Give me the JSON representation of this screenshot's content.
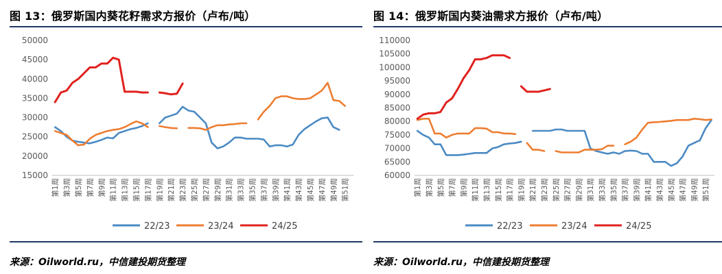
{
  "charts": [
    {
      "title": "图 13：俄罗斯国内葵花籽需求方报价（卢布/吨）",
      "source": "来源：Oilworld.ru，中信建投期货整理",
      "chart_data": {
        "type": "line",
        "title": "俄罗斯国内葵花籽需求方报价（卢布/吨）",
        "xlabel": "",
        "ylabel": "",
        "ylim": [
          15000,
          50000
        ],
        "yticks": [
          15000,
          20000,
          25000,
          30000,
          35000,
          40000,
          45000,
          50000
        ],
        "x": [
          "第1周",
          "第2周",
          "第3周",
          "第4周",
          "第5周",
          "第6周",
          "第7周",
          "第8周",
          "第9周",
          "第10周",
          "第11周",
          "第12周",
          "第13周",
          "第14周",
          "第15周",
          "第16周",
          "第17周",
          "第18周",
          "第19周",
          "第20周",
          "第21周",
          "第22周",
          "第23周",
          "第24周",
          "第25周",
          "第26周",
          "第27周",
          "第28周",
          "第29周",
          "第30周",
          "第31周",
          "第32周",
          "第33周",
          "第34周",
          "第35周",
          "第36周",
          "第37周",
          "第38周",
          "第39周",
          "第40周",
          "第41周",
          "第42周",
          "第43周",
          "第44周",
          "第45周",
          "第46周",
          "第47周",
          "第48周",
          "第49周",
          "第50周",
          "第51周",
          "第52周"
        ],
        "xticks": [
          "第1周",
          "第3周",
          "第5周",
          "第7周",
          "第9周",
          "第11周",
          "第13周",
          "第15周",
          "第17周",
          "第19周",
          "第21周",
          "第23周",
          "第25周",
          "第27周",
          "第29周",
          "第31周",
          "第33周",
          "第35周",
          "第37周",
          "第39周",
          "第41周",
          "第43周",
          "第45周",
          "第47周",
          "第49周",
          "第51周"
        ],
        "series": [
          {
            "name": "22/23",
            "color": "#4a8ac4",
            "values": [
              27500,
              26500,
              25000,
              24000,
              23700,
              23500,
              23300,
              23700,
              24200,
              24800,
              24600,
              26000,
              26500,
              27000,
              27300,
              27800,
              28500,
              null,
              28500,
              30000,
              30500,
              31000,
              32800,
              31800,
              31500,
              30000,
              28500,
              23500,
              22000,
              22500,
              23500,
              24800,
              24800,
              24500,
              24500,
              24500,
              24300,
              22500,
              22800,
              22800,
              22500,
              23000,
              25500,
              27000,
              28000,
              29000,
              29800,
              30000,
              27500,
              26800,
              null,
              null
            ]
          },
          {
            "name": "23/24",
            "color": "#ed7d31",
            "values": [
              26500,
              26000,
              25500,
              24000,
              22800,
              23000,
              24500,
              25500,
              26000,
              26500,
              26800,
              27000,
              27500,
              28300,
              29000,
              28500,
              27500,
              null,
              27800,
              27500,
              27300,
              27200,
              null,
              27300,
              27300,
              27200,
              26800,
              27500,
              28000,
              28000,
              28200,
              28300,
              28500,
              28500,
              null,
              29500,
              31500,
              33000,
              35000,
              35500,
              35500,
              35000,
              34800,
              34800,
              35000,
              36000,
              37000,
              39000,
              34500,
              34300,
              33000,
              null
            ]
          },
          {
            "name": "24/25",
            "color": "#e0211d",
            "values": [
              34000,
              36500,
              37000,
              39000,
              40000,
              41500,
              43000,
              43000,
              44000,
              44000,
              45500,
              45000,
              36700,
              36700,
              36700,
              36500,
              36500,
              null,
              36500,
              36300,
              36000,
              36200,
              38800,
              null,
              null,
              null,
              null,
              null,
              null,
              null,
              null,
              null,
              null,
              null,
              null,
              null,
              null,
              null,
              null,
              null,
              null,
              null,
              null,
              null,
              null,
              null,
              null,
              null,
              null,
              null,
              null,
              null
            ]
          }
        ],
        "legend": "bottom"
      }
    },
    {
      "title": "图 14：俄罗斯国内葵油需求方报价（卢布/吨）",
      "source": "来源：Oilworld.ru，中信建投期货整理",
      "chart_data": {
        "type": "line",
        "title": "俄罗斯国内葵油需求方报价（卢布/吨）",
        "xlabel": "",
        "ylabel": "",
        "ylim": [
          60000,
          110000
        ],
        "yticks": [
          60000,
          65000,
          70000,
          75000,
          80000,
          85000,
          90000,
          95000,
          100000,
          105000,
          110000
        ],
        "x": [
          "第1周",
          "第2周",
          "第3周",
          "第4周",
          "第5周",
          "第6周",
          "第7周",
          "第8周",
          "第9周",
          "第10周",
          "第11周",
          "第12周",
          "第13周",
          "第14周",
          "第15周",
          "第16周",
          "第17周",
          "第18周",
          "第19周",
          "第20周",
          "第21周",
          "第22周",
          "第23周",
          "第24周",
          "第25周",
          "第26周",
          "第27周",
          "第28周",
          "第29周",
          "第30周",
          "第31周",
          "第32周",
          "第33周",
          "第34周",
          "第35周",
          "第36周",
          "第37周",
          "第38周",
          "第39周",
          "第40周",
          "第41周",
          "第42周",
          "第43周",
          "第44周",
          "第45周",
          "第46周",
          "第47周",
          "第48周",
          "第49周",
          "第50周",
          "第51周",
          "第52周"
        ],
        "xticks": [
          "第1周",
          "第3周",
          "第5周",
          "第7周",
          "第9周",
          "第11周",
          "第13周",
          "第15周",
          "第17周",
          "第19周",
          "第21周",
          "第23周",
          "第25周",
          "第27周",
          "第29周",
          "第31周",
          "第33周",
          "第35周",
          "第37周",
          "第39周",
          "第41周",
          "第43周",
          "第45周",
          "第47周",
          "第49周",
          "第51周"
        ],
        "series": [
          {
            "name": "22/23",
            "color": "#4a8ac4",
            "values": [
              76500,
              75000,
              74000,
              71500,
              71500,
              67500,
              67500,
              67500,
              67700,
              68000,
              68300,
              68300,
              68300,
              70000,
              70500,
              71500,
              71800,
              72000,
              72500,
              null,
              76500,
              76500,
              76500,
              76500,
              77000,
              77000,
              76500,
              76500,
              76500,
              76500,
              70000,
              69000,
              68500,
              68000,
              68500,
              68000,
              69000,
              69200,
              69000,
              68000,
              68000,
              65000,
              65000,
              65000,
              63500,
              64500,
              67000,
              71000,
              72000,
              73000,
              77500,
              80500
            ]
          },
          {
            "name": "23/24",
            "color": "#ed7d31",
            "values": [
              80500,
              81000,
              81000,
              75500,
              75500,
              74000,
              75000,
              75500,
              75500,
              75500,
              77500,
              77500,
              77300,
              76000,
              76000,
              75500,
              75500,
              75300,
              null,
              72000,
              69500,
              69500,
              69000,
              null,
              69000,
              68500,
              68500,
              68500,
              68500,
              69500,
              69500,
              69500,
              69700,
              71000,
              71000,
              null,
              71500,
              72500,
              74000,
              77000,
              79500,
              79700,
              79800,
              80000,
              80200,
              80500,
              80500,
              80500,
              81000,
              80800,
              80500,
              80700
            ]
          },
          {
            "name": "24/25",
            "color": "#e0211d",
            "values": [
              81000,
              82500,
              83000,
              83000,
              83500,
              87000,
              88500,
              92000,
              96000,
              99000,
              103000,
              103000,
              103500,
              104500,
              104500,
              104500,
              103500,
              null,
              93000,
              91000,
              91000,
              91000,
              91500,
              92000,
              null,
              null,
              null,
              null,
              null,
              null,
              null,
              null,
              null,
              null,
              null,
              null,
              null,
              null,
              null,
              null,
              null,
              null,
              null,
              null,
              null,
              null,
              null,
              null,
              null,
              null,
              null,
              null
            ]
          }
        ],
        "legend": "bottom"
      }
    }
  ]
}
